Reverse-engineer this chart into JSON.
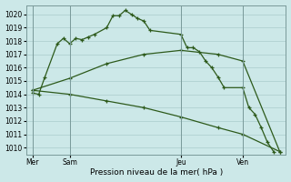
{
  "bg_color": "#cce8e8",
  "grid_color": "#aacccc",
  "line_color": "#2d5a1b",
  "xlabel": "Pression niveau de la mer( hPa )",
  "ylim": [
    1009.5,
    1020.7
  ],
  "yticks": [
    1010,
    1011,
    1012,
    1013,
    1014,
    1015,
    1016,
    1017,
    1018,
    1019,
    1020
  ],
  "xtick_labels": [
    "Mer",
    "Sam",
    "Jeu",
    "Ven"
  ],
  "xtick_positions": [
    0,
    6,
    24,
    34
  ],
  "vline_positions": [
    0,
    6,
    24,
    34
  ],
  "series1_x": [
    0,
    1,
    2,
    4,
    5,
    6,
    7,
    8,
    9,
    10,
    12,
    13,
    14,
    15,
    16,
    17,
    18,
    19,
    24,
    25,
    26,
    27,
    28,
    29,
    30,
    31,
    34,
    35,
    36,
    37,
    38,
    39
  ],
  "series1_y": [
    1014.1,
    1014.0,
    1015.3,
    1017.8,
    1018.2,
    1017.8,
    1018.2,
    1018.1,
    1018.3,
    1018.5,
    1019.0,
    1019.9,
    1019.9,
    1020.3,
    1020.0,
    1019.7,
    1019.5,
    1018.8,
    1018.5,
    1017.5,
    1017.5,
    1017.2,
    1016.5,
    1016.0,
    1015.3,
    1014.5,
    1014.5,
    1013.0,
    1012.5,
    1011.5,
    1010.4,
    1009.7
  ],
  "series2_x": [
    0,
    6,
    12,
    18,
    24,
    30,
    34,
    40
  ],
  "series2_y": [
    1014.3,
    1015.2,
    1016.3,
    1017.0,
    1017.3,
    1017.0,
    1016.5,
    1009.7
  ],
  "series3_x": [
    0,
    6,
    12,
    18,
    24,
    30,
    34,
    40
  ],
  "series3_y": [
    1014.3,
    1014.0,
    1013.5,
    1013.0,
    1012.3,
    1011.5,
    1011.0,
    1009.7
  ]
}
